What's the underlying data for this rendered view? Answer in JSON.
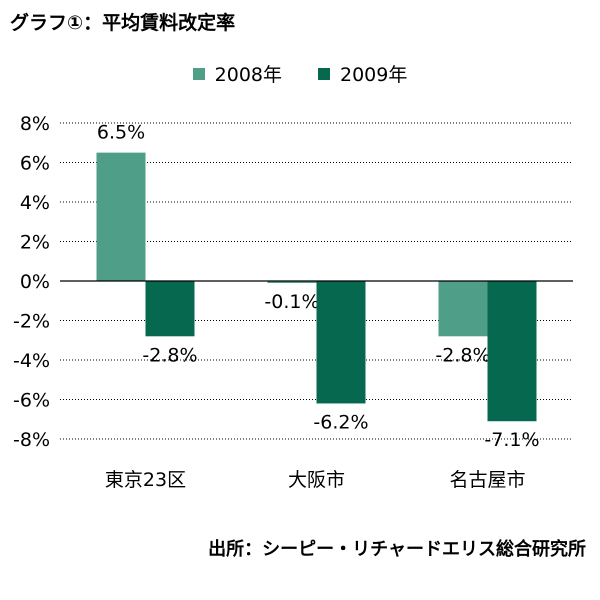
{
  "title": "グラフ①：平均賃料改定率",
  "source": "出所：シーピー・リチャードエリス総合研究所",
  "chart_data": {
    "type": "bar",
    "categories": [
      "東京23区",
      "大阪市",
      "名古屋市"
    ],
    "series": [
      {
        "name": "2008年",
        "values": [
          6.5,
          -0.1,
          -2.8
        ],
        "labels": [
          "6.5%",
          "-0.1%",
          "-2.8%"
        ],
        "color": "#4e9e88"
      },
      {
        "name": "2009年",
        "values": [
          -2.8,
          -6.2,
          -7.1
        ],
        "labels": [
          "-2.8%",
          "-6.2%",
          "-7.1%"
        ],
        "color": "#05684f"
      }
    ],
    "yticks": [
      "8%",
      "6%",
      "4%",
      "2%",
      "0%",
      "-2%",
      "-4%",
      "-6%",
      "-8%"
    ],
    "ylim": [
      -8,
      8
    ],
    "grid": true,
    "legend_position": "top-center"
  }
}
